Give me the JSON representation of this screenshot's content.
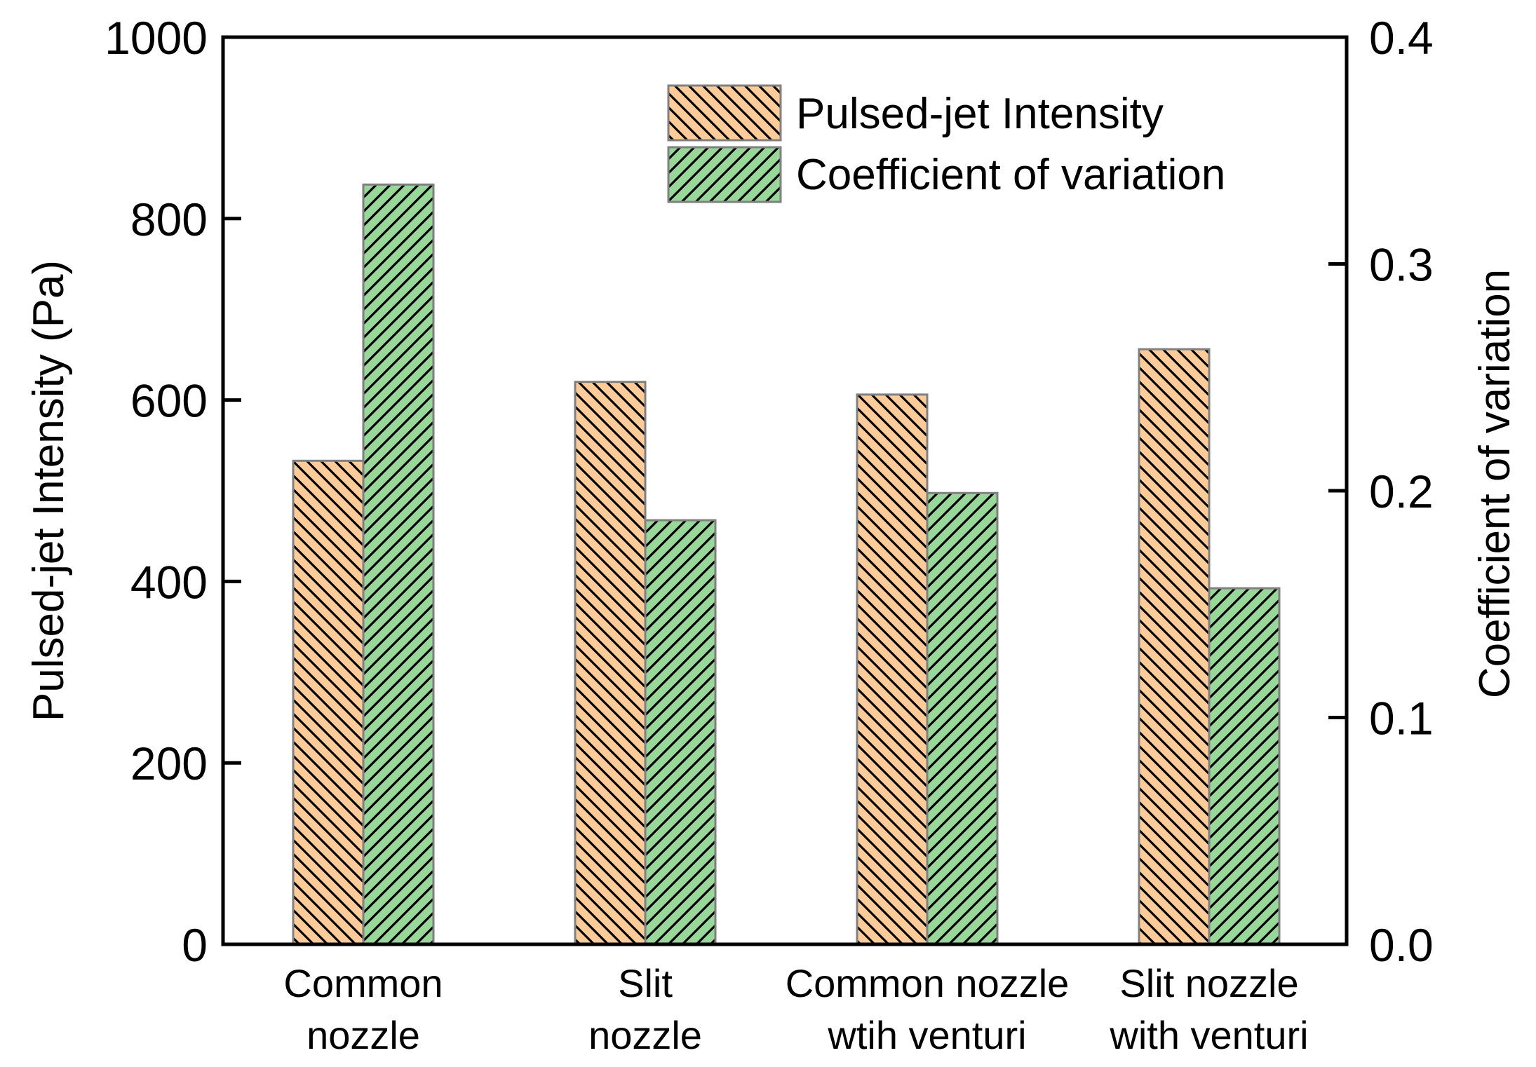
{
  "chart_data": {
    "type": "bar",
    "title": "",
    "categories": [
      [
        "Common",
        "nozzle"
      ],
      [
        "Slit",
        "nozzle"
      ],
      [
        "Common nozzle",
        "wtih venturi"
      ],
      [
        "Slit nozzle",
        "with venturi"
      ]
    ],
    "series": [
      {
        "name": "Pulsed-jet Intensity",
        "axis": "left",
        "values": [
          533,
          620,
          606,
          656
        ],
        "color": "#ffcc99",
        "hatch": "backslash"
      },
      {
        "name": "Coefficient of variation",
        "axis": "right",
        "values": [
          0.335,
          0.187,
          0.199,
          0.157
        ],
        "color": "#99d699",
        "hatch": "slash"
      }
    ],
    "ylabel": "Pulsed-jet Intensity (Pa)",
    "ylim": [
      0,
      1000
    ],
    "yticks": [
      "0",
      "200",
      "400",
      "600",
      "800",
      "1000"
    ],
    "y2label": "Coefficient of variation",
    "y2lim": [
      0,
      0.4
    ],
    "y2ticks": [
      "0.0",
      "0.1",
      "0.2",
      "0.3",
      "0.4"
    ],
    "xlabel": "",
    "legend_position": "top-right",
    "grid": false,
    "colors": {
      "axis": "#000000",
      "bar_edge": "#808080",
      "hatch": "#000000"
    }
  }
}
